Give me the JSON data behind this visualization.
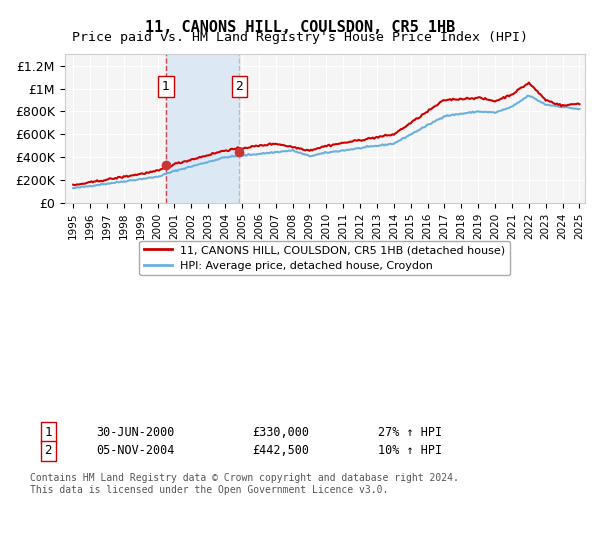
{
  "title": "11, CANONS HILL, COULSDON, CR5 1HB",
  "subtitle": "Price paid vs. HM Land Registry's House Price Index (HPI)",
  "ylabel_ticks": [
    "£0",
    "£200K",
    "£400K",
    "£600K",
    "£800K",
    "£1M",
    "£1.2M"
  ],
  "ytick_values": [
    0,
    200000,
    400000,
    600000,
    800000,
    1000000,
    1200000
  ],
  "ylim": [
    0,
    1300000
  ],
  "x_start_year": 1995,
  "x_end_year": 2025,
  "sale1_date": 2000.5,
  "sale1_price": 330000,
  "sale1_label": "1",
  "sale2_date": 2004.85,
  "sale2_price": 442500,
  "sale2_label": "2",
  "hpi_color": "#6ab0de",
  "price_color": "#cc0000",
  "sale_marker_color": "#cc3333",
  "shaded_region_color": "#dce9f5",
  "legend_line1": "11, CANONS HILL, COULSDON, CR5 1HB (detached house)",
  "legend_line2": "HPI: Average price, detached house, Croydon",
  "annotation1": "1     30-JUN-2000          £330,000          27% ↑ HPI",
  "annotation2": "2     05-NOV-2004          £442,500          10% ↑ HPI",
  "footnote": "Contains HM Land Registry data © Crown copyright and database right 2024.\nThis data is licensed under the Open Government Licence v3.0.",
  "background_color": "#f5f5f5"
}
